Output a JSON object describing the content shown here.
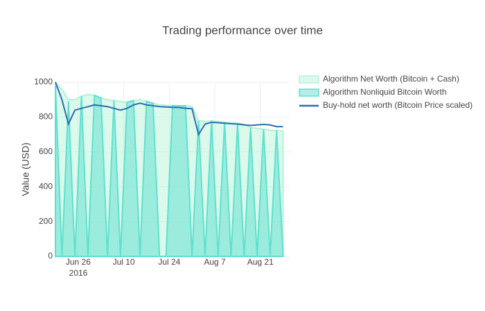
{
  "chart_data": {
    "type": "area",
    "title": "Trading performance over time",
    "y_label": "Value (USD)",
    "x_year_label": "2016",
    "x": [
      "2016-06-19",
      "2016-06-21",
      "2016-06-23",
      "2016-06-25",
      "2016-06-27",
      "2016-06-29",
      "2016-07-01",
      "2016-07-03",
      "2016-07-05",
      "2016-07-07",
      "2016-07-09",
      "2016-07-11",
      "2016-07-13",
      "2016-07-15",
      "2016-07-17",
      "2016-07-19",
      "2016-07-21",
      "2016-07-23",
      "2016-07-25",
      "2016-07-27",
      "2016-07-29",
      "2016-07-31",
      "2016-08-02",
      "2016-08-04",
      "2016-08-06",
      "2016-08-08",
      "2016-08-10",
      "2016-08-12",
      "2016-08-14",
      "2016-08-16",
      "2016-08-18",
      "2016-08-20",
      "2016-08-22",
      "2016-08-24",
      "2016-08-26",
      "2016-08-28"
    ],
    "series": [
      {
        "name": "Algorithm Net Worth (Bitcoin + Cash)",
        "kind": "area",
        "color": "#b5f2d8",
        "fill": "rgba(190,245,220,0.55)",
        "values": [
          1000,
          960,
          900,
          900,
          920,
          930,
          925,
          910,
          900,
          895,
          890,
          885,
          895,
          900,
          890,
          880,
          870,
          868,
          865,
          865,
          865,
          862,
          780,
          775,
          778,
          775,
          770,
          768,
          765,
          760,
          740,
          735,
          730,
          725,
          722,
          720
        ]
      },
      {
        "name": "Algorithm Nonliquid Bitcoin Worth",
        "kind": "area",
        "color": "#5fe0cf",
        "fill": "rgba(80,220,205,0.45)",
        "values": [
          980,
          0,
          890,
          0,
          920,
          0,
          925,
          910,
          0,
          895,
          0,
          885,
          895,
          0,
          890,
          880,
          0,
          0,
          865,
          865,
          865,
          0,
          780,
          0,
          778,
          0,
          770,
          0,
          765,
          0,
          740,
          0,
          730,
          0,
          722,
          0
        ]
      },
      {
        "name": "Buy-hold net worth (Bitcoin Price scaled)",
        "kind": "line",
        "color": "#2b6cb0",
        "values": [
          1000,
          900,
          760,
          840,
          850,
          860,
          870,
          865,
          860,
          850,
          840,
          850,
          870,
          880,
          870,
          865,
          860,
          858,
          856,
          855,
          850,
          848,
          700,
          760,
          770,
          768,
          765,
          762,
          760,
          755,
          752,
          755,
          758,
          755,
          745,
          745
        ]
      }
    ],
    "xlim": [
      "2016-06-19",
      "2016-08-30"
    ],
    "xticks": [
      {
        "value": "2016-06-26",
        "label": "Jun 26"
      },
      {
        "value": "2016-07-10",
        "label": "Jul 10"
      },
      {
        "value": "2016-07-24",
        "label": "Jul 24"
      },
      {
        "value": "2016-08-07",
        "label": "Aug 7"
      },
      {
        "value": "2016-08-21",
        "label": "Aug 21"
      }
    ],
    "ylim": [
      0,
      1000
    ],
    "yticks": [
      0,
      200,
      400,
      600,
      800,
      1000
    ],
    "grid": true
  }
}
